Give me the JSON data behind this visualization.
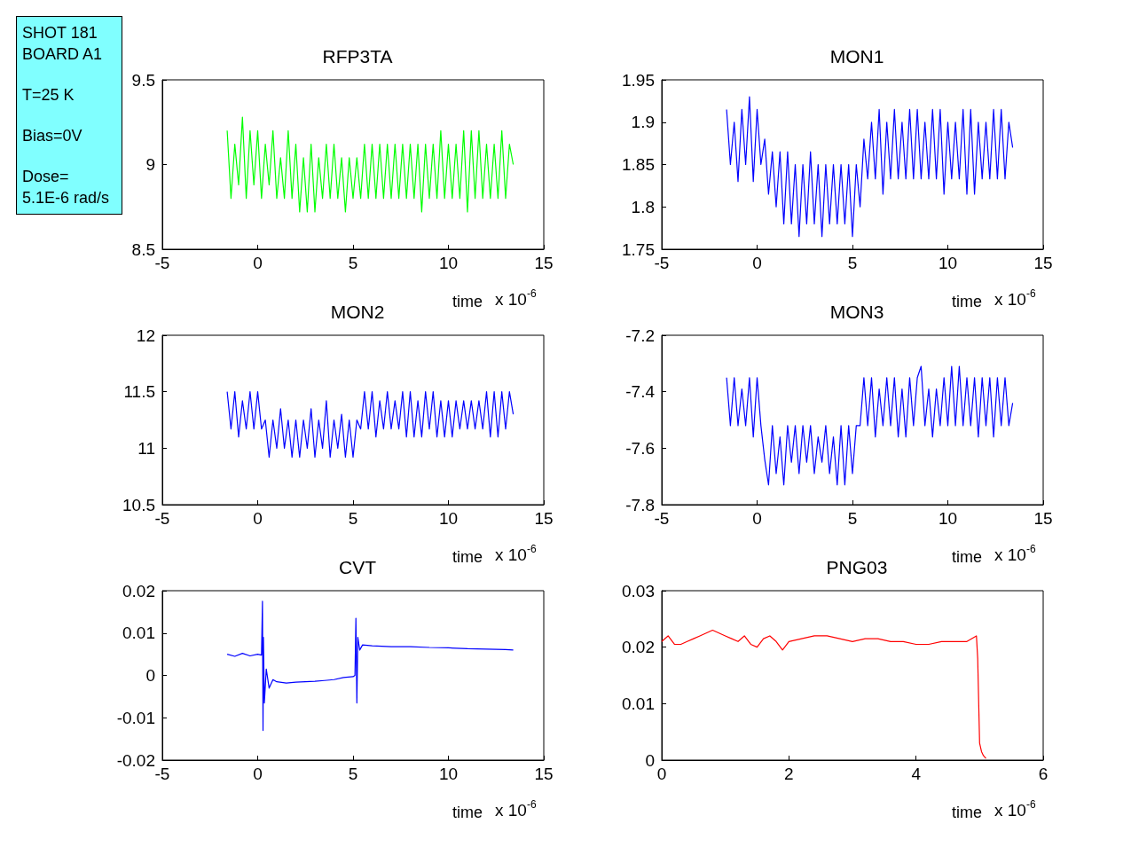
{
  "chart_data": [
    {
      "type": "other",
      "annotations": [
        "SHOT 181",
        "BOARD A1",
        "T=25 K",
        "Bias=0V",
        "Dose=",
        "5.1E-6 rad/s"
      ]
    },
    {
      "type": "line",
      "title": "RFP3TA",
      "xlabel": "time",
      "annotations": [
        "x 10$^{-6}$"
      ],
      "xlim": [
        -5,
        15
      ],
      "xticks": [
        -5,
        0,
        5,
        10,
        15
      ],
      "ylim": [
        8.5,
        9.5
      ],
      "yticks": [
        8.5,
        9,
        9.5
      ],
      "grid": false,
      "marker": "none",
      "x": [
        -1.6,
        -1.4,
        -1.2,
        -1,
        -0.8,
        -0.6,
        -0.4,
        -0.2,
        0,
        0.2,
        0.4,
        0.6,
        0.8,
        1,
        1.2,
        1.4,
        1.6,
        1.8,
        2,
        2.2,
        2.4,
        2.6,
        2.8,
        3,
        3.2,
        3.4,
        3.6,
        3.8,
        4,
        4.2,
        4.4,
        4.6,
        4.8,
        5,
        5.2,
        5.4,
        5.6,
        5.8,
        6,
        6.2,
        6.4,
        6.6,
        6.8,
        7,
        7.2,
        7.4,
        7.6,
        7.8,
        8,
        8.2,
        8.4,
        8.6,
        8.8,
        9,
        9.2,
        9.4,
        9.6,
        9.8,
        10,
        10.2,
        10.4,
        10.6,
        10.8,
        11,
        11.2,
        11.4,
        11.6,
        11.8,
        12,
        12.2,
        12.4,
        12.6,
        12.8,
        13,
        13.2,
        13.4
      ],
      "series": [
        {
          "color": "#00ff00",
          "values": [
            9.2,
            8.8,
            9.12,
            8.88,
            9.28,
            8.8,
            9.2,
            8.88,
            9.2,
            8.8,
            9.12,
            8.88,
            9.2,
            8.8,
            9.04,
            8.8,
            9.2,
            8.8,
            9.12,
            8.72,
            9.04,
            8.72,
            9.12,
            8.72,
            9.04,
            8.8,
            9.12,
            8.8,
            9.12,
            8.8,
            9.04,
            8.72,
            9.04,
            8.8,
            9.04,
            8.8,
            9.12,
            8.8,
            9.12,
            8.8,
            9.12,
            8.8,
            9.12,
            8.8,
            9.12,
            8.8,
            9.12,
            8.8,
            9.12,
            8.8,
            9.12,
            8.72,
            9.12,
            8.8,
            9.12,
            8.8,
            9.2,
            8.8,
            9.12,
            8.8,
            9.12,
            8.8,
            9.2,
            8.72,
            9.2,
            8.8,
            9.2,
            8.8,
            9.12,
            8.8,
            9.12,
            8.8,
            9.2,
            8.8,
            9.12,
            9.0
          ]
        }
      ]
    },
    {
      "type": "line",
      "title": "MON1",
      "xlabel": "time",
      "annotations": [
        "x 10$^{-6}$"
      ],
      "xlim": [
        -5,
        15
      ],
      "xticks": [
        -5,
        0,
        5,
        10,
        15
      ],
      "ylim": [
        1.75,
        1.95
      ],
      "yticks": [
        1.75,
        1.8,
        1.85,
        1.9,
        1.95
      ],
      "grid": false,
      "marker": "none",
      "x": [
        -1.6,
        -1.4,
        -1.2,
        -1,
        -0.8,
        -0.6,
        -0.4,
        -0.2,
        0,
        0.2,
        0.4,
        0.6,
        0.8,
        1,
        1.2,
        1.4,
        1.6,
        1.8,
        2,
        2.2,
        2.4,
        2.6,
        2.8,
        3,
        3.2,
        3.4,
        3.6,
        3.8,
        4,
        4.2,
        4.4,
        4.6,
        4.8,
        5,
        5.2,
        5.4,
        5.6,
        5.8,
        6,
        6.2,
        6.4,
        6.6,
        6.8,
        7,
        7.2,
        7.4,
        7.6,
        7.8,
        8,
        8.2,
        8.4,
        8.6,
        8.8,
        9,
        9.2,
        9.4,
        9.6,
        9.8,
        10,
        10.2,
        10.4,
        10.6,
        10.8,
        11,
        11.2,
        11.4,
        11.6,
        11.8,
        12,
        12.2,
        12.4,
        12.6,
        12.8,
        13,
        13.2,
        13.4
      ],
      "series": [
        {
          "color": "#0000ff",
          "values": [
            1.915,
            1.85,
            1.9,
            1.83,
            1.915,
            1.85,
            1.93,
            1.83,
            1.915,
            1.85,
            1.88,
            1.815,
            1.865,
            1.8,
            1.865,
            1.78,
            1.865,
            1.78,
            1.85,
            1.765,
            1.85,
            1.78,
            1.865,
            1.78,
            1.85,
            1.765,
            1.85,
            1.78,
            1.85,
            1.78,
            1.85,
            1.78,
            1.85,
            1.765,
            1.85,
            1.8,
            1.88,
            1.833,
            1.9,
            1.833,
            1.915,
            1.815,
            1.9,
            1.833,
            1.915,
            1.833,
            1.9,
            1.833,
            1.915,
            1.833,
            1.915,
            1.833,
            1.9,
            1.833,
            1.915,
            1.833,
            1.915,
            1.815,
            1.9,
            1.833,
            1.9,
            1.833,
            1.915,
            1.815,
            1.915,
            1.815,
            1.9,
            1.833,
            1.9,
            1.833,
            1.915,
            1.833,
            1.915,
            1.833,
            1.9,
            1.87
          ]
        }
      ]
    },
    {
      "type": "line",
      "title": "MON2",
      "xlabel": "time",
      "annotations": [
        "x 10$^{-6}$"
      ],
      "xlim": [
        -5,
        15
      ],
      "xticks": [
        -5,
        0,
        5,
        10,
        15
      ],
      "ylim": [
        10.5,
        12
      ],
      "yticks": [
        10.5,
        11,
        11.5,
        12
      ],
      "grid": false,
      "marker": "none",
      "x": [
        -1.6,
        -1.4,
        -1.2,
        -1,
        -0.8,
        -0.6,
        -0.4,
        -0.2,
        0,
        0.2,
        0.4,
        0.6,
        0.8,
        1,
        1.2,
        1.4,
        1.6,
        1.8,
        2,
        2.2,
        2.4,
        2.6,
        2.8,
        3,
        3.2,
        3.4,
        3.6,
        3.8,
        4,
        4.2,
        4.4,
        4.6,
        4.8,
        5,
        5.2,
        5.4,
        5.6,
        5.8,
        6,
        6.2,
        6.4,
        6.6,
        6.8,
        7,
        7.2,
        7.4,
        7.6,
        7.8,
        8,
        8.2,
        8.4,
        8.6,
        8.8,
        9,
        9.2,
        9.4,
        9.6,
        9.8,
        10,
        10.2,
        10.4,
        10.6,
        10.8,
        11,
        11.2,
        11.4,
        11.6,
        11.8,
        12,
        12.2,
        12.4,
        12.6,
        12.8,
        13,
        13.2,
        13.4
      ],
      "series": [
        {
          "color": "#0000ff",
          "values": [
            11.5,
            11.17,
            11.5,
            11.1,
            11.42,
            11.17,
            11.5,
            11.17,
            11.5,
            11.17,
            11.25,
            10.92,
            11.25,
            11.0,
            11.35,
            11.0,
            11.25,
            10.92,
            11.25,
            10.92,
            11.25,
            11.0,
            11.35,
            10.92,
            11.25,
            11.0,
            11.42,
            10.92,
            11.25,
            11.0,
            11.3,
            10.92,
            11.25,
            10.92,
            11.25,
            11.17,
            11.5,
            11.17,
            11.5,
            11.1,
            11.42,
            11.17,
            11.5,
            11.17,
            11.42,
            11.17,
            11.5,
            11.1,
            11.5,
            11.1,
            11.42,
            11.1,
            11.5,
            11.17,
            11.5,
            11.1,
            11.42,
            11.1,
            11.42,
            11.1,
            11.42,
            11.17,
            11.42,
            11.17,
            11.42,
            11.17,
            11.42,
            11.17,
            11.5,
            11.1,
            11.5,
            11.1,
            11.5,
            11.17,
            11.5,
            11.3
          ]
        }
      ]
    },
    {
      "type": "line",
      "title": "MON3",
      "xlabel": "time",
      "annotations": [
        "x 10$^{-6}$"
      ],
      "xlim": [
        -5,
        15
      ],
      "xticks": [
        -5,
        0,
        5,
        10,
        15
      ],
      "ylim": [
        -7.8,
        -7.2
      ],
      "yticks": [
        -7.8,
        -7.6,
        -7.4,
        -7.2
      ],
      "grid": false,
      "marker": "none",
      "x": [
        -1.6,
        -1.4,
        -1.2,
        -1,
        -0.8,
        -0.6,
        -0.4,
        -0.2,
        0,
        0.2,
        0.4,
        0.6,
        0.8,
        1,
        1.2,
        1.4,
        1.6,
        1.8,
        2,
        2.2,
        2.4,
        2.6,
        2.8,
        3,
        3.2,
        3.4,
        3.6,
        3.8,
        4,
        4.2,
        4.4,
        4.6,
        4.8,
        5,
        5.2,
        5.4,
        5.6,
        5.8,
        6,
        6.2,
        6.4,
        6.6,
        6.8,
        7,
        7.2,
        7.4,
        7.6,
        7.8,
        8,
        8.2,
        8.4,
        8.6,
        8.8,
        9,
        9.2,
        9.4,
        9.6,
        9.8,
        10,
        10.2,
        10.4,
        10.6,
        10.8,
        11,
        11.2,
        11.4,
        11.6,
        11.8,
        12,
        12.2,
        12.4,
        12.6,
        12.8,
        13,
        13.2,
        13.4
      ],
      "series": [
        {
          "color": "#0000ff",
          "values": [
            -7.35,
            -7.52,
            -7.35,
            -7.52,
            -7.39,
            -7.52,
            -7.35,
            -7.56,
            -7.35,
            -7.52,
            -7.64,
            -7.73,
            -7.52,
            -7.69,
            -7.56,
            -7.73,
            -7.52,
            -7.65,
            -7.52,
            -7.69,
            -7.52,
            -7.65,
            -7.52,
            -7.69,
            -7.56,
            -7.65,
            -7.52,
            -7.69,
            -7.56,
            -7.73,
            -7.52,
            -7.73,
            -7.52,
            -7.69,
            -7.52,
            -7.52,
            -7.35,
            -7.52,
            -7.35,
            -7.56,
            -7.39,
            -7.52,
            -7.35,
            -7.52,
            -7.35,
            -7.56,
            -7.39,
            -7.56,
            -7.35,
            -7.52,
            -7.35,
            -7.31,
            -7.52,
            -7.39,
            -7.56,
            -7.39,
            -7.52,
            -7.35,
            -7.52,
            -7.31,
            -7.52,
            -7.31,
            -7.52,
            -7.35,
            -7.52,
            -7.35,
            -7.56,
            -7.35,
            -7.52,
            -7.35,
            -7.56,
            -7.35,
            -7.52,
            -7.35,
            -7.52,
            -7.44
          ]
        }
      ]
    },
    {
      "type": "line",
      "title": "CVT",
      "xlabel": "time",
      "annotations": [
        "x 10$^{-6}$"
      ],
      "xlim": [
        -5,
        15
      ],
      "xticks": [
        -5,
        0,
        5,
        10,
        15
      ],
      "ylim": [
        -0.02,
        0.02
      ],
      "yticks": [
        -0.02,
        -0.01,
        0,
        0.01,
        0.02
      ],
      "grid": false,
      "marker": "none",
      "x": [
        -1.6,
        -1.2,
        -0.8,
        -0.4,
        0,
        0.2,
        0.25,
        0.28,
        0.3,
        0.35,
        0.45,
        0.6,
        0.8,
        1,
        1.5,
        2,
        2.5,
        3,
        3.5,
        4,
        4.5,
        5,
        5.1,
        5.15,
        5.2,
        5.25,
        5.35,
        5.5,
        6,
        7,
        8,
        9,
        10,
        11,
        12,
        13,
        13.4
      ],
      "series": [
        {
          "color": "#0000ff",
          "values": [
            0.005,
            0.0045,
            0.0052,
            0.0046,
            0.005,
            0.0048,
            0.0175,
            -0.013,
            0.009,
            -0.0065,
            0.0015,
            -0.003,
            -0.001,
            -0.0015,
            -0.0018,
            -0.0016,
            -0.0015,
            -0.0014,
            -0.0012,
            -0.001,
            -0.0005,
            -0.0003,
            0,
            0.0135,
            -0.0065,
            0.009,
            0.006,
            0.0072,
            0.007,
            0.0068,
            0.0068,
            0.0066,
            0.0065,
            0.0063,
            0.0062,
            0.0061,
            0.006
          ]
        }
      ]
    },
    {
      "type": "line",
      "title": "PNG03",
      "xlabel": "time",
      "annotations": [
        "x 10$^{-6}$"
      ],
      "xlim": [
        0,
        6
      ],
      "xticks": [
        0,
        2,
        4,
        6
      ],
      "ylim": [
        0,
        0.03
      ],
      "yticks": [
        0,
        0.01,
        0.02,
        0.03
      ],
      "grid": false,
      "marker": "none",
      "x": [
        0,
        0.1,
        0.2,
        0.3,
        0.4,
        0.5,
        0.6,
        0.7,
        0.8,
        0.9,
        1,
        1.1,
        1.2,
        1.3,
        1.4,
        1.5,
        1.6,
        1.7,
        1.8,
        1.9,
        2,
        2.2,
        2.4,
        2.6,
        2.8,
        3,
        3.2,
        3.4,
        3.6,
        3.8,
        4,
        4.2,
        4.4,
        4.6,
        4.8,
        4.95,
        4.97,
        5,
        5.03,
        5.06,
        5.1
      ],
      "series": [
        {
          "color": "#ff0000",
          "values": [
            0.021,
            0.022,
            0.0205,
            0.0205,
            0.021,
            0.0215,
            0.022,
            0.0225,
            0.023,
            0.0225,
            0.022,
            0.0215,
            0.021,
            0.022,
            0.0205,
            0.02,
            0.0215,
            0.022,
            0.021,
            0.0195,
            0.021,
            0.0215,
            0.022,
            0.022,
            0.0215,
            0.021,
            0.0215,
            0.0215,
            0.021,
            0.021,
            0.0205,
            0.0205,
            0.021,
            0.021,
            0.021,
            0.022,
            0.018,
            0.003,
            0.0015,
            0.0008,
            0.0003
          ]
        }
      ]
    }
  ]
}
